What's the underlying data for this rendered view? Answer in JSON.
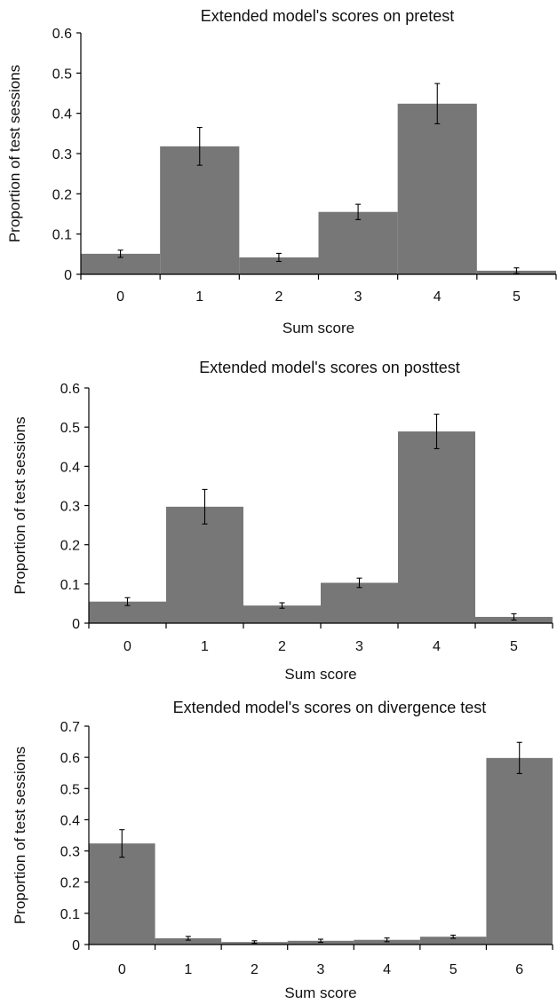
{
  "chart_data": [
    {
      "type": "bar",
      "title": "Extended model's scores on pretest",
      "xlabel": "Sum score",
      "ylabel": "Proportion of test sessions",
      "categories": [
        "0",
        "1",
        "2",
        "3",
        "4",
        "5"
      ],
      "values": [
        0.051,
        0.318,
        0.042,
        0.155,
        0.424,
        0.009
      ],
      "error": [
        0.009,
        0.047,
        0.01,
        0.019,
        0.05,
        0.007
      ],
      "ylim": [
        0,
        0.6
      ],
      "yticks": [
        "0",
        "0.1",
        "0.2",
        "0.3",
        "0.4",
        "0.5",
        "0.6"
      ],
      "bar_color": "#777777",
      "grid": false
    },
    {
      "type": "bar",
      "title": "Extended model's scores on posttest",
      "xlabel": "Sum score",
      "ylabel": "Proportion of test sessions",
      "categories": [
        "0",
        "1",
        "2",
        "3",
        "4",
        "5"
      ],
      "values": [
        0.055,
        0.297,
        0.045,
        0.103,
        0.489,
        0.016
      ],
      "error": [
        0.01,
        0.044,
        0.007,
        0.012,
        0.044,
        0.008
      ],
      "ylim": [
        0,
        0.6
      ],
      "yticks": [
        "0",
        "0.1",
        "0.2",
        "0.3",
        "0.4",
        "0.5",
        "0.6"
      ],
      "bar_color": "#777777",
      "grid": false
    },
    {
      "type": "bar",
      "title": "Extended model's scores on divergence test",
      "xlabel": "Sum score",
      "ylabel": "Proportion of test sessions",
      "categories": [
        "0",
        "1",
        "2",
        "3",
        "4",
        "5",
        "6"
      ],
      "values": [
        0.324,
        0.02,
        0.008,
        0.012,
        0.015,
        0.025,
        0.598
      ],
      "error": [
        0.044,
        0.006,
        0.004,
        0.005,
        0.006,
        0.005,
        0.05
      ],
      "ylim": [
        0,
        0.7
      ],
      "yticks": [
        "0",
        "0.1",
        "0.2",
        "0.3",
        "0.4",
        "0.5",
        "0.6",
        "0.7"
      ],
      "bar_color": "#777777",
      "grid": false
    }
  ]
}
